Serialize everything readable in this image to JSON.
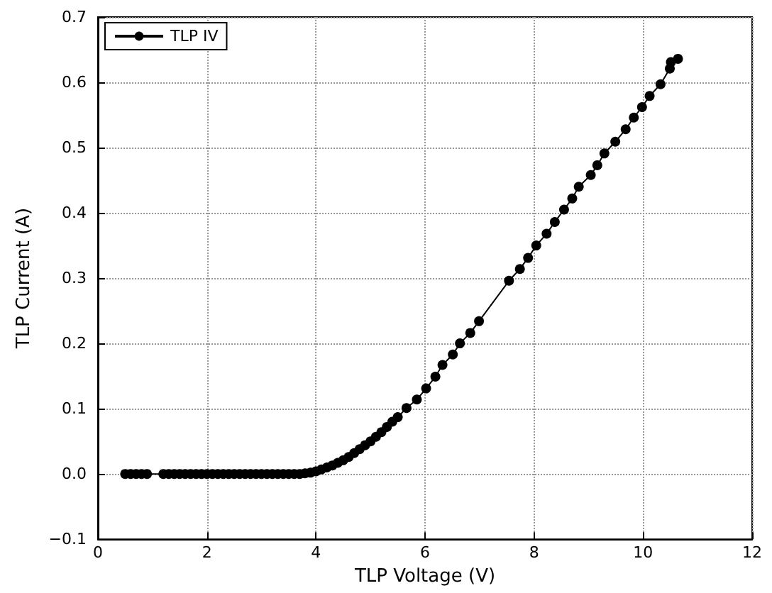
{
  "chart_data": {
    "type": "line",
    "xlabel": "TLP Voltage (V)",
    "ylabel": "TLP Current (A)",
    "xlim": [
      0,
      12
    ],
    "xticks": [
      0,
      2,
      4,
      6,
      8,
      10,
      12
    ],
    "ylim": [
      -0.1,
      0.7
    ],
    "yticks": [
      {
        "value": -0.1,
        "label": "−0.1"
      },
      {
        "value": 0,
        "label": "0.0"
      },
      0.1,
      0.2,
      0.3,
      0.4,
      0.5,
      0.6,
      0.7
    ],
    "grid": true,
    "legend": "top left",
    "marker": "circle",
    "line_style": "solid",
    "series": [
      {
        "name": "TLP IV",
        "color": "#000000",
        "x": [
          0.5,
          0.6,
          0.7,
          0.8,
          0.9,
          1.2,
          1.3,
          1.4,
          1.5,
          1.6,
          1.7,
          1.8,
          1.9,
          2.0,
          2.1,
          2.2,
          2.3,
          2.4,
          2.5,
          2.6,
          2.7,
          2.8,
          2.9,
          3.0,
          3.1,
          3.2,
          3.3,
          3.4,
          3.5,
          3.6,
          3.7,
          3.8,
          3.9,
          4.0,
          4.1,
          4.2,
          4.3,
          4.4,
          4.5,
          4.6,
          4.7,
          4.8,
          4.9,
          5.0,
          5.1,
          5.2,
          5.3,
          5.4,
          5.5,
          5.66,
          5.85,
          6.02,
          6.19,
          6.32,
          6.51,
          6.64,
          6.83,
          6.99,
          7.54,
          7.74,
          7.89,
          8.04,
          8.23,
          8.38,
          8.55,
          8.7,
          8.82,
          9.04,
          9.16,
          9.29,
          9.49,
          9.68,
          9.83,
          9.98,
          10.12,
          10.32,
          10.49,
          10.51,
          10.64
        ],
        "values": [
          0,
          0,
          0,
          0,
          0,
          0,
          0,
          0,
          0,
          0,
          0,
          0,
          0,
          0,
          0,
          0,
          0,
          0,
          0,
          0,
          0,
          0,
          0,
          0,
          0,
          0,
          0,
          0,
          0,
          0,
          0,
          0.001,
          0.002,
          0.004,
          0.007,
          0.01,
          0.013,
          0.017,
          0.021,
          0.026,
          0.032,
          0.038,
          0.044,
          0.05,
          0.057,
          0.064,
          0.072,
          0.08,
          0.087,
          0.101,
          0.114,
          0.131,
          0.149,
          0.167,
          0.183,
          0.2,
          0.216,
          0.234,
          0.296,
          0.314,
          0.331,
          0.35,
          0.368,
          0.386,
          0.405,
          0.422,
          0.44,
          0.458,
          0.473,
          0.491,
          0.509,
          0.528,
          0.546,
          0.562,
          0.579,
          0.597,
          0.621,
          0.631,
          0.636
        ]
      }
    ]
  }
}
